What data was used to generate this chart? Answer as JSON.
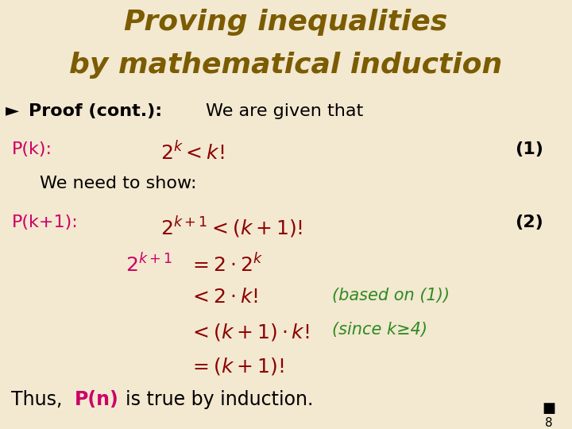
{
  "bg_color": "#f3e8d0",
  "title_color": "#7b5c00",
  "title_line1": "Proving inequalities",
  "title_line2": "by mathematical induction",
  "title_fontsize": 26,
  "body_fontsize": 16,
  "math_fontsize": 18,
  "dark_red": "#8b0000",
  "pink": "#cc0066",
  "green": "#2e8b22",
  "black": "#000000",
  "page_number": "8"
}
